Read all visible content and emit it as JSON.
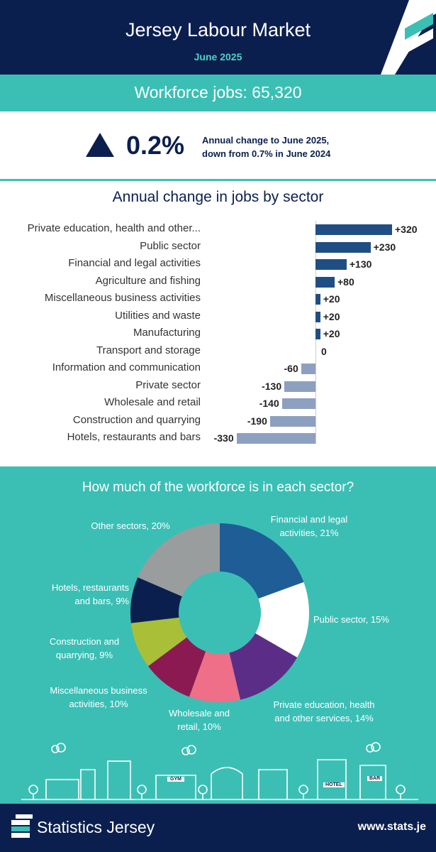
{
  "header": {
    "title": "Jersey Labour Market",
    "date": "June 2025"
  },
  "workforce": {
    "label": "Workforce jobs: 65,320"
  },
  "annual_change": {
    "value": "0.2%",
    "line1": "Annual change to June 2025,",
    "line2": "down from 0.7% in June 2024",
    "direction": "up"
  },
  "colors": {
    "navy": "#0b1f4f",
    "teal": "#3bbfb5",
    "bar_positive": "#1f4e85",
    "bar_negative": "#8da0c0"
  },
  "chart_data": [
    {
      "type": "bar",
      "orientation": "horizontal",
      "title": "Annual change in jobs by sector",
      "categories": [
        "Private education, health and other...",
        "Public sector",
        "Financial and legal activities",
        "Agriculture and fishing",
        "Miscellaneous business activities",
        "Utilities and waste",
        "Manufacturing",
        "Transport and storage",
        "Information and communication",
        "Private sector",
        "Wholesale and retail",
        "Construction and quarrying",
        "Hotels, restaurants and bars"
      ],
      "values": [
        320,
        230,
        130,
        80,
        20,
        20,
        20,
        0,
        -60,
        -130,
        -140,
        -190,
        -330
      ],
      "value_labels": [
        "+320",
        "+230",
        "+130",
        "+80",
        "+20",
        "+20",
        "+20",
        "0",
        "-60",
        "-130",
        "-140",
        "-190",
        "-330"
      ]
    },
    {
      "type": "pie",
      "style": "donut",
      "title": "How much of the workforce is in each sector?",
      "slices": [
        {
          "label_lines": [
            "Financial and legal",
            "activities, 21%"
          ],
          "value": 21,
          "color": "#1f5d97"
        },
        {
          "label_lines": [
            "Public sector, 15%"
          ],
          "value": 15,
          "color": "#ffffff"
        },
        {
          "label_lines": [
            "Private education, health",
            "and other services, 14%"
          ],
          "value": 14,
          "color": "#5c2d87"
        },
        {
          "label_lines": [
            "Wholesale and",
            "retail, 10%"
          ],
          "value": 10,
          "color": "#ee6f87"
        },
        {
          "label_lines": [
            "Miscellaneous business",
            "activities, 10%"
          ],
          "value": 10,
          "color": "#8c1a52"
        },
        {
          "label_lines": [
            "Construction and",
            "quarrying, 9%"
          ],
          "value": 9,
          "color": "#a9bf38"
        },
        {
          "label_lines": [
            "Hotels, restaurants",
            "and bars, 9%"
          ],
          "value": 9,
          "color": "#0b1f4f"
        },
        {
          "label_lines": [
            "Other sectors, 20%"
          ],
          "value": 20,
          "color": "#9a9d9e"
        }
      ]
    }
  ],
  "skyline": {
    "signs": [
      "GYM",
      "HOTEL",
      "BAR"
    ]
  },
  "footer": {
    "brand": "Statistics Jersey",
    "url": "www.stats.je"
  }
}
